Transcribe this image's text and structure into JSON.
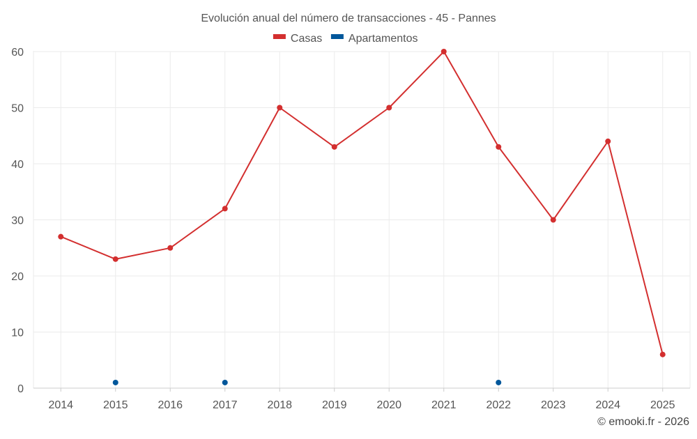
{
  "chart_data": {
    "type": "line",
    "title": "Evolución anual del número de transacciones - 45 - Pannes",
    "categories": [
      "2014",
      "2015",
      "2016",
      "2017",
      "2018",
      "2019",
      "2020",
      "2021",
      "2022",
      "2023",
      "2024",
      "2025"
    ],
    "series": [
      {
        "name": "Casas",
        "color": "#d32f2f",
        "values": [
          27,
          23,
          25,
          32,
          50,
          43,
          50,
          60,
          43,
          30,
          44,
          6
        ],
        "line": true
      },
      {
        "name": "Apartamentos",
        "color": "#01579b",
        "values": [
          null,
          1,
          null,
          1,
          null,
          null,
          null,
          null,
          1,
          null,
          null,
          null
        ],
        "line": false
      }
    ],
    "y_ticks": [
      0,
      10,
      20,
      30,
      40,
      50,
      60
    ],
    "ylim": [
      0,
      60
    ],
    "xlabel": "",
    "ylabel": "",
    "legend_position": "top-center",
    "grid": true
  },
  "credit": "© emooki.fr - 2026"
}
